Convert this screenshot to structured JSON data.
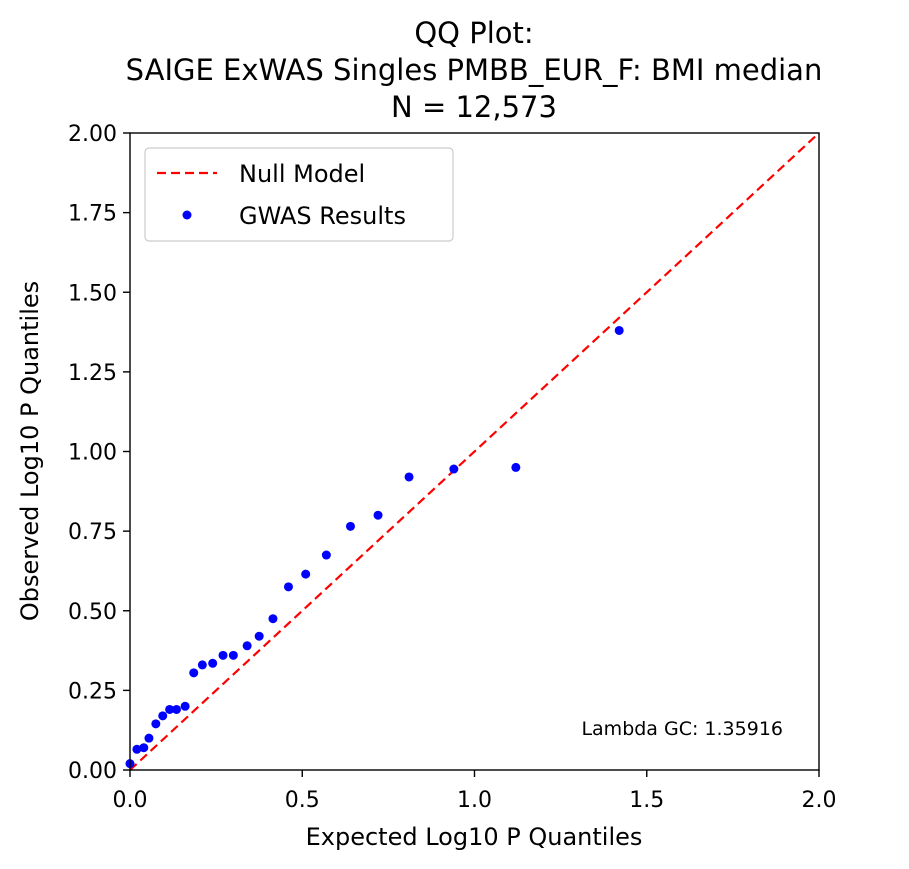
{
  "chart_data": {
    "type": "scatter",
    "title_lines": [
      "QQ Plot:",
      "SAIGE ExWAS Singles PMBB_EUR_F: BMI median",
      "N = 12,573"
    ],
    "xlabel": "Expected Log10 P Quantiles",
    "ylabel": "Observed Log10 P Quantiles",
    "xlim": [
      0,
      2
    ],
    "ylim": [
      0,
      2
    ],
    "x_ticks": [
      "0.0",
      "0.5",
      "1.0",
      "1.5",
      "2.0"
    ],
    "y_ticks": [
      "0.00",
      "0.25",
      "0.50",
      "0.75",
      "1.00",
      "1.25",
      "1.50",
      "1.75",
      "2.00"
    ],
    "legend_position": "upper-left",
    "legend": [
      "Null Model",
      "GWAS Results"
    ],
    "annotation": "Lambda GC: 1.35916",
    "null_model": {
      "name": "Null Model",
      "x": [
        0,
        2
      ],
      "y": [
        0,
        2
      ],
      "color": "#ff0000",
      "style": "dashed"
    },
    "series": [
      {
        "name": "GWAS Results",
        "color": "#0000ff",
        "x": [
          0.0,
          0.02,
          0.04,
          0.055,
          0.075,
          0.095,
          0.115,
          0.135,
          0.16,
          0.185,
          0.21,
          0.24,
          0.27,
          0.3,
          0.34,
          0.375,
          0.415,
          0.46,
          0.51,
          0.57,
          0.64,
          0.72,
          0.81,
          0.94,
          1.12,
          1.42
        ],
        "y": [
          0.02,
          0.065,
          0.07,
          0.1,
          0.145,
          0.17,
          0.19,
          0.19,
          0.2,
          0.305,
          0.33,
          0.335,
          0.36,
          0.36,
          0.39,
          0.42,
          0.475,
          0.575,
          0.615,
          0.675,
          0.765,
          0.8,
          0.92,
          0.945,
          0.95,
          1.38
        ]
      }
    ]
  }
}
